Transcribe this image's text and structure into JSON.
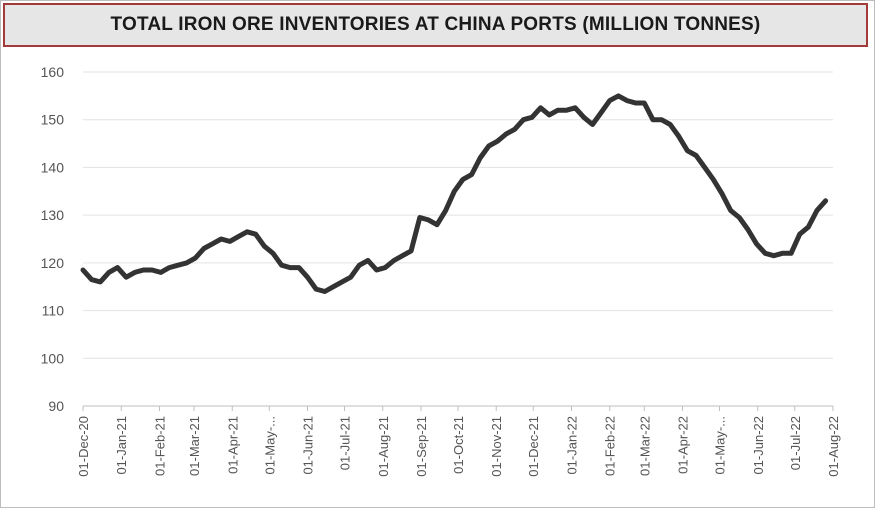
{
  "chart_data": {
    "type": "line",
    "title": "TOTAL IRON ORE INVENTORIES AT CHINA PORTS (MILLION TONNES)",
    "xlabel": "",
    "ylabel": "",
    "ylim": [
      90,
      160
    ],
    "yticks": [
      "160",
      "150",
      "140",
      "130",
      "120",
      "110",
      "100",
      "90"
    ],
    "xticks": [
      "01-Dec-20",
      "01-Jan-21",
      "01-Feb-21",
      "01-Mar-21",
      "01-Apr-21",
      "01-May-...",
      "01-Jun-21",
      "01-Jul-21",
      "01-Aug-21",
      "01-Sep-21",
      "01-Oct-21",
      "01-Nov-21",
      "01-Dec-21",
      "01-Jan-22",
      "01-Feb-22",
      "01-Mar-22",
      "01-Apr-22",
      "01-May-...",
      "01-Jun-22",
      "01-Jul-22",
      "01-Aug-22"
    ],
    "grid": true,
    "line_color": "#333333",
    "series": [
      {
        "points": [
          [
            "2020-12-01",
            118.5
          ],
          [
            "2020-12-08",
            116.5
          ],
          [
            "2020-12-15",
            116.0
          ],
          [
            "2020-12-22",
            118.0
          ],
          [
            "2020-12-29",
            119.0
          ],
          [
            "2021-01-05",
            117.0
          ],
          [
            "2021-01-12",
            118.0
          ],
          [
            "2021-01-19",
            118.5
          ],
          [
            "2021-01-26",
            118.5
          ],
          [
            "2021-02-02",
            118.0
          ],
          [
            "2021-02-09",
            119.0
          ],
          [
            "2021-02-16",
            119.5
          ],
          [
            "2021-02-23",
            120.0
          ],
          [
            "2021-03-02",
            121.0
          ],
          [
            "2021-03-09",
            123.0
          ],
          [
            "2021-03-16",
            124.0
          ],
          [
            "2021-03-23",
            125.0
          ],
          [
            "2021-03-30",
            124.5
          ],
          [
            "2021-04-06",
            125.5
          ],
          [
            "2021-04-13",
            126.5
          ],
          [
            "2021-04-20",
            126.0
          ],
          [
            "2021-04-27",
            123.5
          ],
          [
            "2021-05-04",
            122.0
          ],
          [
            "2021-05-11",
            119.5
          ],
          [
            "2021-05-18",
            119.0
          ],
          [
            "2021-05-25",
            119.0
          ],
          [
            "2021-06-01",
            117.0
          ],
          [
            "2021-06-08",
            114.5
          ],
          [
            "2021-06-15",
            114.0
          ],
          [
            "2021-06-22",
            115.0
          ],
          [
            "2021-06-29",
            116.0
          ],
          [
            "2021-07-06",
            117.0
          ],
          [
            "2021-07-13",
            119.5
          ],
          [
            "2021-07-20",
            120.5
          ],
          [
            "2021-07-27",
            118.5
          ],
          [
            "2021-08-03",
            119.0
          ],
          [
            "2021-08-10",
            120.5
          ],
          [
            "2021-08-17",
            121.5
          ],
          [
            "2021-08-24",
            122.5
          ],
          [
            "2021-08-31",
            129.5
          ],
          [
            "2021-09-07",
            129.0
          ],
          [
            "2021-09-14",
            128.0
          ],
          [
            "2021-09-21",
            131.0
          ],
          [
            "2021-09-28",
            135.0
          ],
          [
            "2021-10-05",
            137.5
          ],
          [
            "2021-10-12",
            138.5
          ],
          [
            "2021-10-19",
            142.0
          ],
          [
            "2021-10-26",
            144.5
          ],
          [
            "2021-11-02",
            145.5
          ],
          [
            "2021-11-09",
            147.0
          ],
          [
            "2021-11-16",
            148.0
          ],
          [
            "2021-11-23",
            150.0
          ],
          [
            "2021-11-30",
            150.5
          ],
          [
            "2021-12-07",
            152.5
          ],
          [
            "2021-12-14",
            151.0
          ],
          [
            "2021-12-21",
            152.0
          ],
          [
            "2021-12-28",
            152.0
          ],
          [
            "2022-01-04",
            152.5
          ],
          [
            "2022-01-11",
            150.5
          ],
          [
            "2022-01-18",
            149.0
          ],
          [
            "2022-01-25",
            151.5
          ],
          [
            "2022-02-01",
            154.0
          ],
          [
            "2022-02-08",
            155.0
          ],
          [
            "2022-02-15",
            154.0
          ],
          [
            "2022-02-22",
            153.5
          ],
          [
            "2022-03-01",
            153.5
          ],
          [
            "2022-03-08",
            150.0
          ],
          [
            "2022-03-15",
            150.0
          ],
          [
            "2022-03-22",
            149.0
          ],
          [
            "2022-03-29",
            146.5
          ],
          [
            "2022-04-05",
            143.5
          ],
          [
            "2022-04-12",
            142.5
          ],
          [
            "2022-04-19",
            140.0
          ],
          [
            "2022-04-26",
            137.5
          ],
          [
            "2022-05-03",
            134.5
          ],
          [
            "2022-05-10",
            131.0
          ],
          [
            "2022-05-17",
            129.5
          ],
          [
            "2022-05-24",
            127.0
          ],
          [
            "2022-05-31",
            124.0
          ],
          [
            "2022-06-07",
            122.0
          ],
          [
            "2022-06-14",
            121.5
          ],
          [
            "2022-06-21",
            122.0
          ],
          [
            "2022-06-28",
            122.0
          ],
          [
            "2022-07-05",
            126.0
          ],
          [
            "2022-07-12",
            127.5
          ],
          [
            "2022-07-19",
            131.0
          ],
          [
            "2022-07-26",
            133.0
          ]
        ]
      }
    ]
  }
}
